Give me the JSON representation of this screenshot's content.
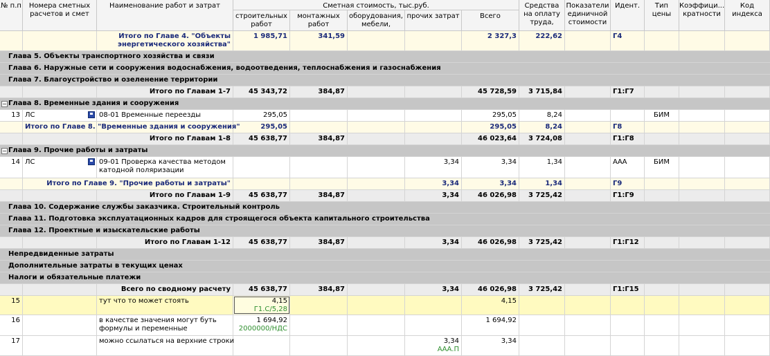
{
  "header": {
    "num": "№ п.п",
    "nums": "Номера сметных расчетов и смет",
    "name": "Наименование работ и затрат",
    "cost_group": "Сметная стоимость, тыс.руб.",
    "build": "строительных работ",
    "mount": "монтажных работ",
    "equip": "оборудования, мебели,",
    "other": "прочих затрат",
    "total": "Всего",
    "wage": "Средства на оплату труда,",
    "unit": "Показатели единичной стоимости",
    "ident": "Идент.",
    "price_type": "Тип цены",
    "coef": "Коэффици... кратности",
    "index_code": "Код индекса"
  },
  "rows": {
    "r1": {
      "name": "Итого по Главе 4. \"Объекты энергетического хозяйства\"",
      "build": "1 985,71",
      "mount": "341,59",
      "total": "2 327,3",
      "wage": "222,62",
      "ident": "Г4"
    },
    "r2": {
      "chapter": "Глава 5. Объекты транспортного хозяйства и связи"
    },
    "r3": {
      "chapter": "Глава 6. Наружные сети и сооружения водоснабжения, водоотведения, теплоснабжения и газоснабжения"
    },
    "r4": {
      "chapter": "Глава 7. Благоустройство и озеленение территории"
    },
    "r5": {
      "name": "Итого по Главам 1-7",
      "build": "45 343,72",
      "mount": "384,87",
      "total": "45 728,59",
      "wage": "3 715,84",
      "ident": "Г1:Г7"
    },
    "r6": {
      "chapter": "Глава 8. Временные здания и сооружения"
    },
    "r7": {
      "num": "13",
      "nums": "ЛС",
      "name": "08-01 Временные переезды",
      "build": "295,05",
      "total": "295,05",
      "wage": "8,24",
      "price_type": "БИМ"
    },
    "r8": {
      "name": "Итого по Главе 8. \"Временные здания и сооружения\"",
      "build": "295,05",
      "total": "295,05",
      "wage": "8,24",
      "ident": "Г8"
    },
    "r9": {
      "name": "Итого по Главам 1-8",
      "build": "45 638,77",
      "mount": "384,87",
      "total": "46 023,64",
      "wage": "3 724,08",
      "ident": "Г1:Г8"
    },
    "r10": {
      "chapter": "Глава 9. Прочие работы и затраты"
    },
    "r11": {
      "num": "14",
      "nums": "ЛС",
      "name": "09-01 Проверка качества методом катодной поляризации",
      "other": "3,34",
      "total": "3,34",
      "wage": "1,34",
      "ident": "ААА",
      "price_type": "БИМ"
    },
    "r12": {
      "name": "Итого по Главе 9. \"Прочие работы и затраты\"",
      "other": "3,34",
      "total": "3,34",
      "wage": "1,34",
      "ident": "Г9"
    },
    "r13": {
      "name": "Итого по Главам 1-9",
      "build": "45 638,77",
      "mount": "384,87",
      "other": "3,34",
      "total": "46 026,98",
      "wage": "3 725,42",
      "ident": "Г1:Г9"
    },
    "r14": {
      "chapter": "Глава 10. Содержание службы заказчика. Строительный контроль"
    },
    "r15": {
      "chapter": "Глава 11. Подготовка эксплуатационных кадров для строящегося объекта капитального строительства"
    },
    "r16": {
      "chapter": "Глава 12. Проектные и изыскательские работы"
    },
    "r17": {
      "name": "Итого по Главам 1-12",
      "build": "45 638,77",
      "mount": "384,87",
      "other": "3,34",
      "total": "46 026,98",
      "wage": "3 725,42",
      "ident": "Г1:Г12"
    },
    "r18": {
      "chapter": "Непредвиденные затраты"
    },
    "r19": {
      "chapter": "Дополнительные затраты в текущих ценах"
    },
    "r20": {
      "chapter": "Налоги и обязательные платежи"
    },
    "r21": {
      "name": "Всего по сводному расчету",
      "build": "45 638,77",
      "mount": "384,87",
      "other": "3,34",
      "total": "46 026,98",
      "wage": "3 725,42",
      "ident": "Г1:Г15"
    },
    "r22": {
      "num": "15",
      "name": "тут что то может стоять",
      "build": "4,15",
      "build_formula": "Г1.С/5,28",
      "total": "4,15"
    },
    "r23": {
      "num": "16",
      "name": "в качестве значения могут буть формулы и переменные",
      "build": "1 694,92",
      "build_formula": "2000000/НДС",
      "total": "1 694,92"
    },
    "r24": {
      "num": "17",
      "name": "можно ссылаться на верхние строки",
      "other": "3,34",
      "other_formula": "ААА.П",
      "total": "3,34"
    }
  },
  "colors": {
    "chapter_bg": "#c6c6c6",
    "subtotal_bg": "#ececec",
    "formula": "#2f8f2f",
    "total_text": "#1a2a7a"
  }
}
